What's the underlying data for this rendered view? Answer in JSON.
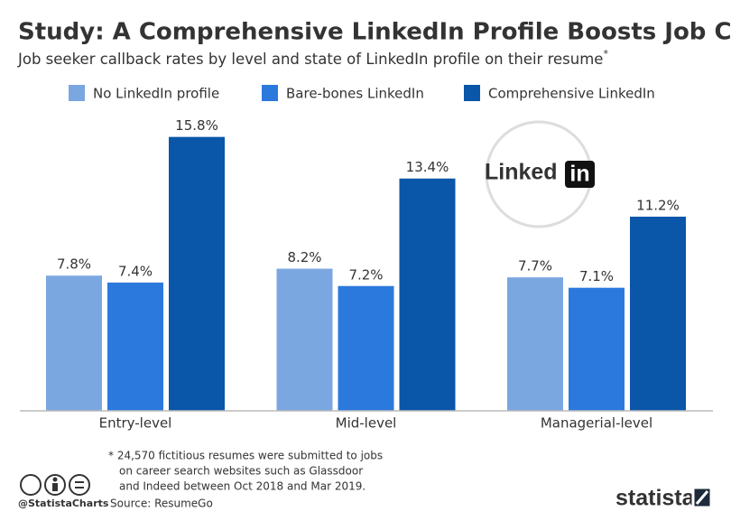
{
  "chart_data": {
    "type": "bar",
    "title": "Study: A Comprehensive LinkedIn Profile Boosts Job Chances",
    "subtitle": "Job seeker callback rates by level and state of LinkedIn profile on their resume",
    "subtitle_mark": "*",
    "categories": [
      "Entry-level",
      "Mid-level",
      "Managerial-level"
    ],
    "series": [
      {
        "name": "No LinkedIn profile",
        "color": "#7ba7e1",
        "values": [
          7.8,
          8.2,
          7.7
        ],
        "value_labels": [
          "7.8%",
          "8.2%",
          "7.7%"
        ]
      },
      {
        "name": "Bare-bones LinkedIn",
        "color": "#2c79dd",
        "values": [
          7.4,
          7.2,
          7.1
        ],
        "value_labels": [
          "7.4%",
          "7.2%",
          "7.1%"
        ]
      },
      {
        "name": "Comprehensive LinkedIn",
        "color": "#0a56a9",
        "values": [
          15.8,
          13.4,
          11.2
        ],
        "value_labels": [
          "15.8%",
          "13.4%",
          "11.2%"
        ]
      }
    ],
    "footnote": [
      "* 24,570 fictitious resumes were submitted to jobs",
      "on career search websites such as Glassdoor",
      "and Indeed between Oct 2018 and Mar 2019."
    ],
    "credit": "@StatistaCharts",
    "source": "Source: ResumeGo",
    "brand": "statista",
    "logo": [
      "Linked",
      "in"
    ]
  }
}
